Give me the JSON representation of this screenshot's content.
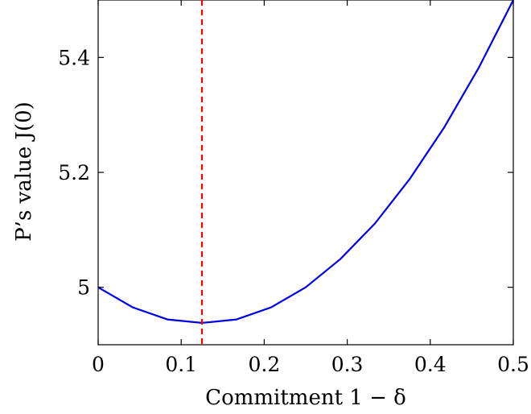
{
  "chart_data": {
    "type": "line",
    "title": "",
    "xlabel": "Commitment 1 − δ",
    "ylabel": "P’s value J(0)",
    "xlim": [
      0,
      0.5
    ],
    "ylim": [
      4.9,
      5.5
    ],
    "xticks": [
      0,
      0.1,
      0.2,
      0.3,
      0.4,
      0.5
    ],
    "xtick_labels": [
      "0",
      "0.1",
      "0.2",
      "0.3",
      "0.4",
      "0.5"
    ],
    "yticks": [
      5,
      5.2,
      5.4
    ],
    "ytick_labels": [
      "5",
      "5.2",
      "5.4"
    ],
    "grid": false,
    "series": [
      {
        "color": "#0000e6",
        "x": [
          0,
          0.0417,
          0.0833,
          0.125,
          0.1667,
          0.2083,
          0.25,
          0.2917,
          0.3333,
          0.375,
          0.4167,
          0.4583,
          0.5
        ],
        "y": [
          5.0,
          4.965,
          4.944,
          4.938,
          4.944,
          4.965,
          5.0,
          5.049,
          5.111,
          5.188,
          5.278,
          5.382,
          5.5
        ]
      }
    ],
    "vline": {
      "x": 0.125,
      "color": "#ff0000",
      "style": "dashed"
    }
  }
}
